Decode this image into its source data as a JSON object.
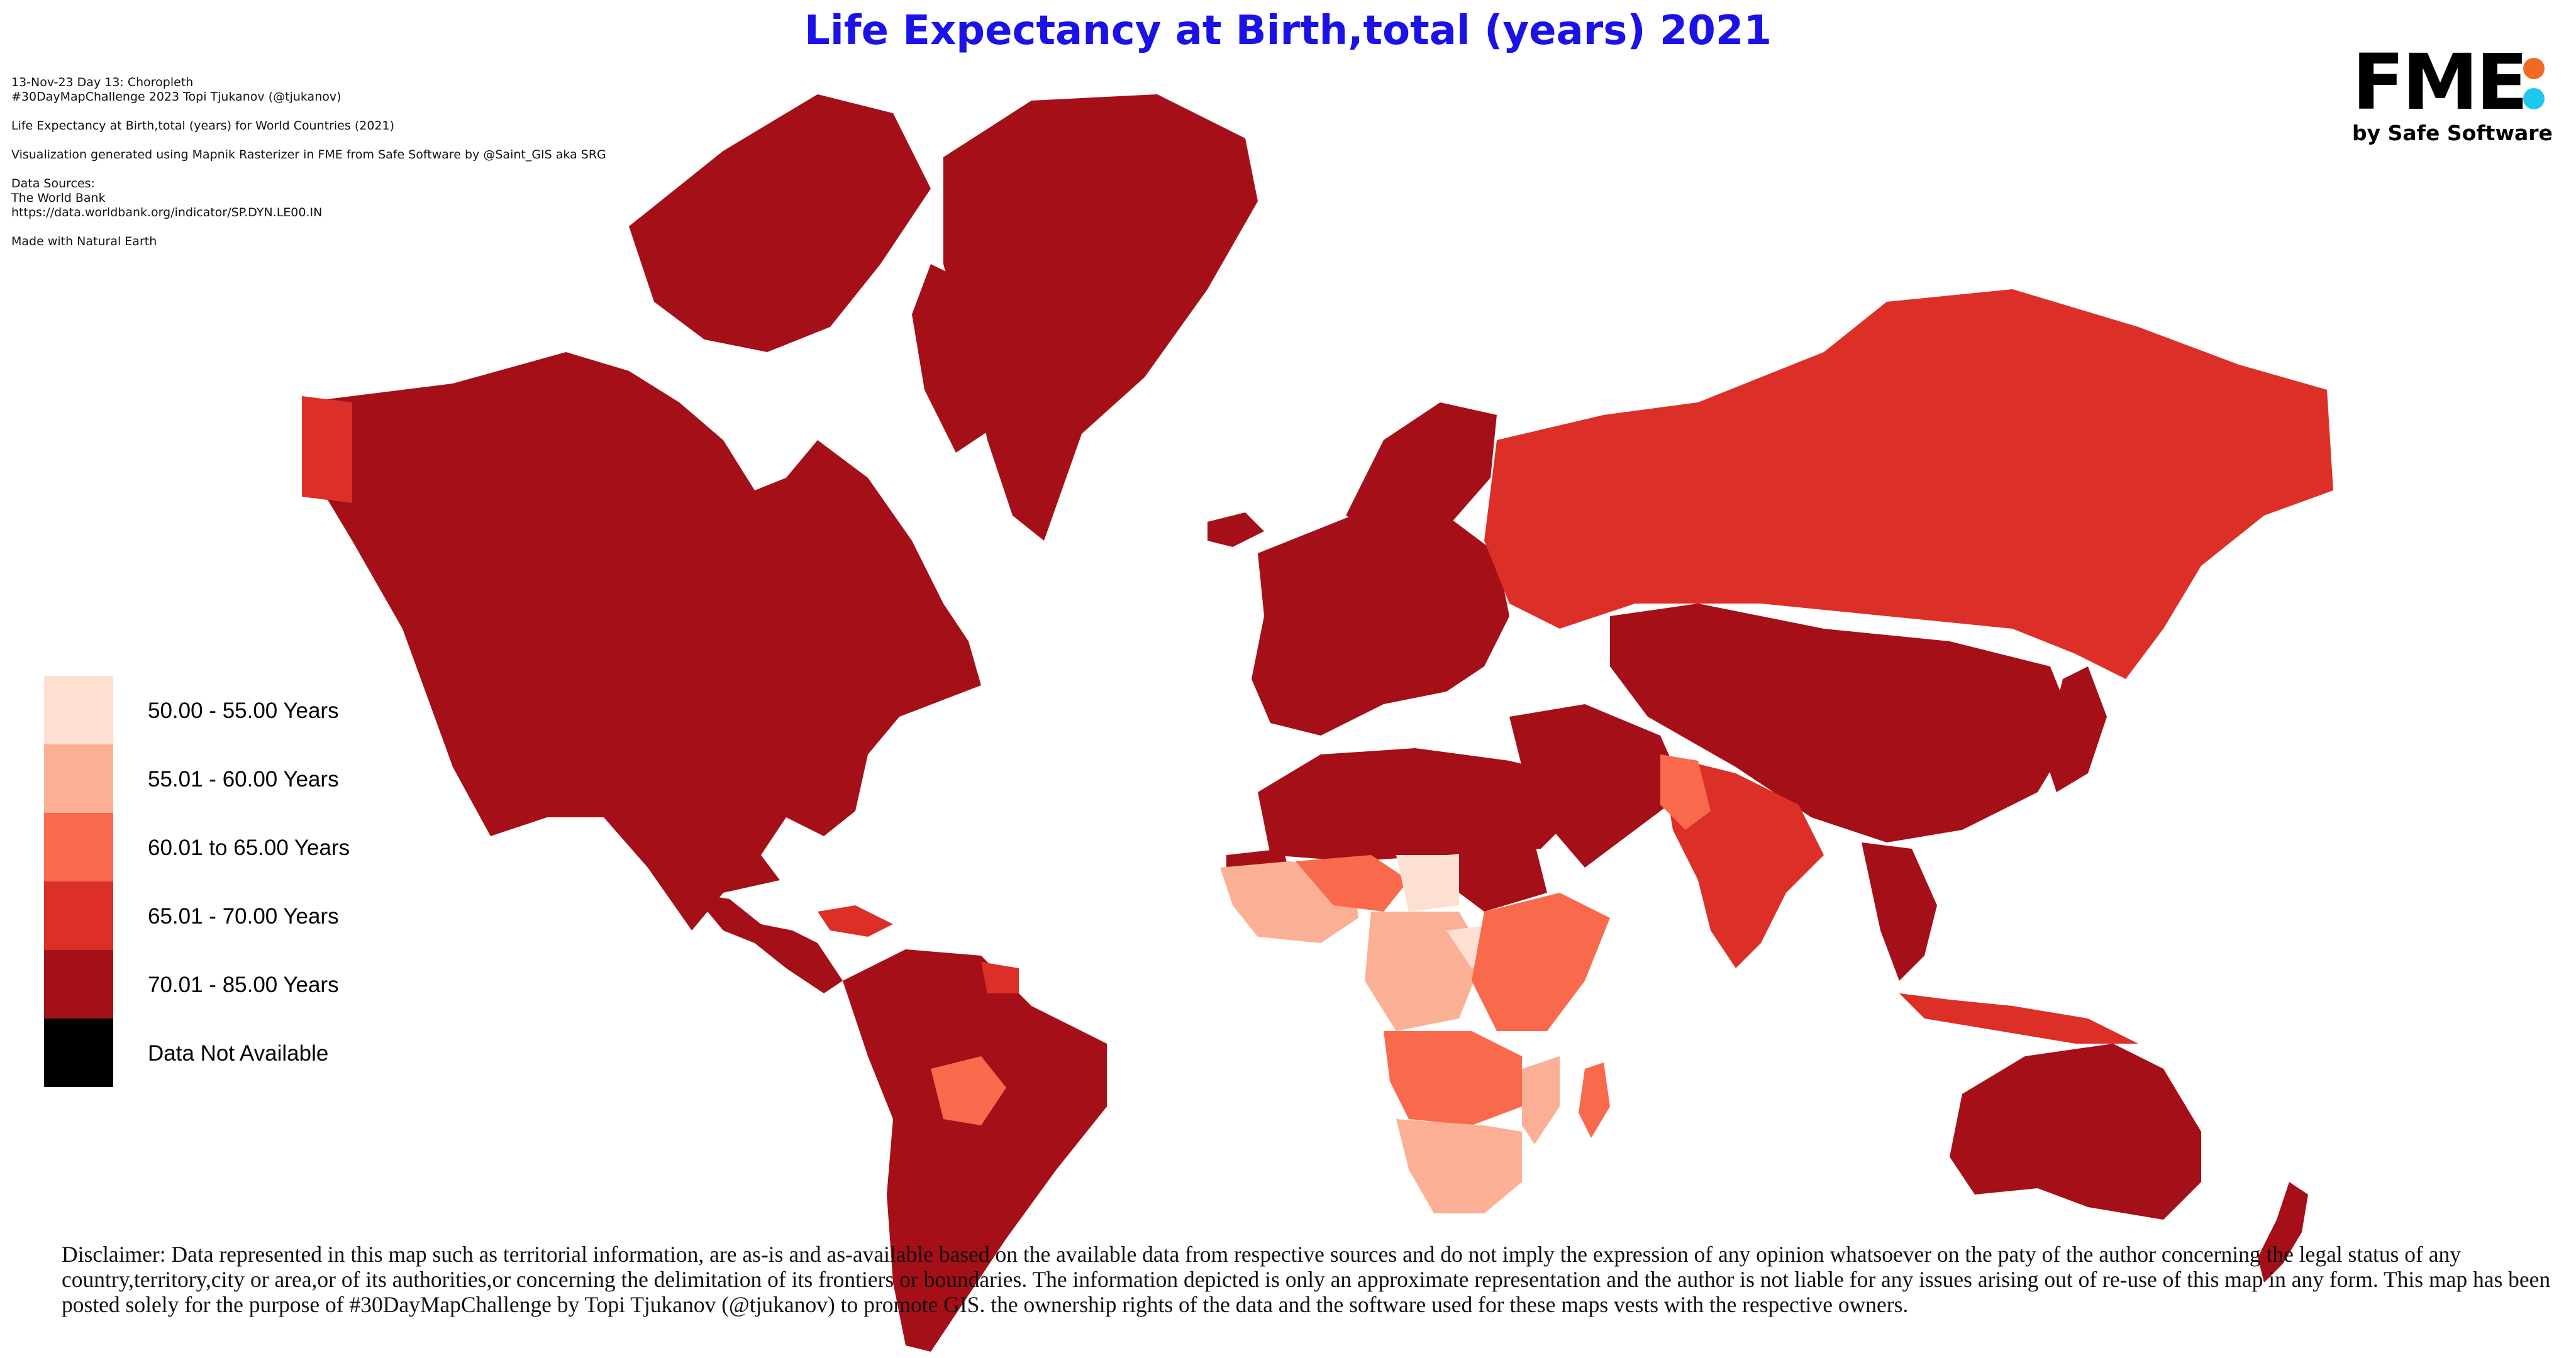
{
  "title": "Life Expectancy at Birth,total (years) 2021",
  "meta": {
    "line1": "13-Nov-23 Day 13: Choropleth",
    "line2": "#30DayMapChallenge 2023 Topi Tjukanov (@tjukanov)",
    "line3": "Life Expectancy at Birth,total (years) for World Countries (2021)",
    "line4": "Visualization generated using Mapnik Rasterizer in FME from Safe Software by @Saint_GIS aka SRG",
    "line5": "Data Sources:",
    "line6": "The World Bank",
    "line7": "https://data.worldbank.org/indicator/SP.DYN.LE00.IN",
    "line8": "Made with Natural Earth"
  },
  "logo": {
    "text": "FME",
    "subtitle": "by Safe Software"
  },
  "legend": [
    {
      "label": "50.00 - 55.00 Years",
      "color": "#fde0d2"
    },
    {
      "label": "55.01 - 60.00 Years",
      "color": "#fbb096"
    },
    {
      "label": "60.01 to 65.00 Years",
      "color": "#f96a4c"
    },
    {
      "label": "65.01 - 70.00 Years",
      "color": "#dc2f28"
    },
    {
      "label": "70.01 - 85.00 Years",
      "color": "#a50f18"
    },
    {
      "label": "Data Not Available",
      "color": "#000000"
    }
  ],
  "disclaimer": "Disclaimer: Data represented in this map such as territorial information, are as-is and as-available based on the available data from respective sources and do not imply the expression of any opinion whatsoever on the paty of the author concerning the legal status of any country,territory,city or area,or of its authorities,or concerning the delimitation of its frontiers or boundaries. The information depicted is only an approximate representation and the author is not liable for any issues arising out of re-use of this map in any form. This map has been posted solely for the purpose of #30DayMapChallenge by Topi Tjukanov (@tjukanov) to promote GIS. the ownership rights of the data and the software used for these maps vests with the respective owners."
}
